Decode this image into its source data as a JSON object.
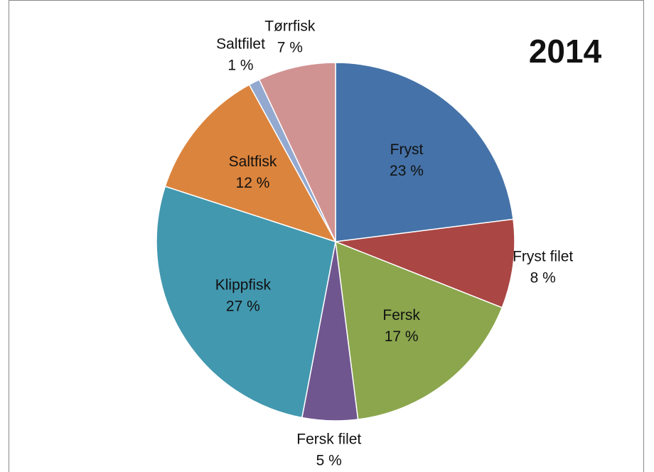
{
  "chart_data": {
    "type": "pie",
    "title": "2014",
    "categories": [
      "Fryst",
      "Fryst filet",
      "Fersk",
      "Fersk filet",
      "Klippfisk",
      "Saltfisk",
      "Saltfilet",
      "Tørrfisk"
    ],
    "values": [
      23,
      8,
      17,
      5,
      27,
      12,
      1,
      7
    ],
    "value_labels": [
      "23 %",
      "8 %",
      "17 %",
      "5 %",
      "27 %",
      "12 %",
      "1 %",
      "7 %"
    ],
    "colors": [
      "#4572a8",
      "#aa4644",
      "#8ba64d",
      "#70568f",
      "#4298af",
      "#db843d",
      "#93a9d0",
      "#d19392"
    ]
  }
}
